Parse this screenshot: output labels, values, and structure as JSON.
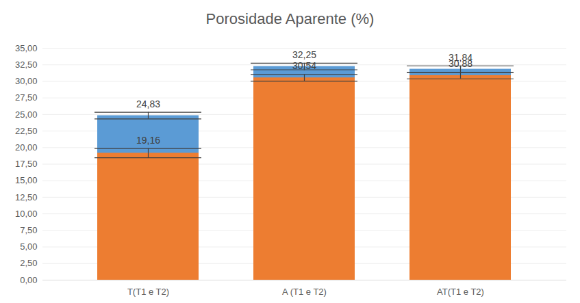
{
  "chart_data": {
    "type": "bar",
    "title": "Porosidade Aparente (%)",
    "categories": [
      "T(T1 e T2)",
      "A (T1 e T2)",
      "AT(T1 e T2)"
    ],
    "series": [
      {
        "color": "#5b9bd5",
        "values": [
          24.83,
          32.25,
          31.84
        ],
        "value_labels": [
          "24,83",
          "32,25",
          "31,84"
        ],
        "errors": [
          0.5,
          0.5,
          0.5
        ]
      },
      {
        "color": "#ed7d31",
        "values": [
          19.16,
          30.54,
          30.88
        ],
        "value_labels": [
          "19,16",
          "30,54",
          "30,88"
        ],
        "errors": [
          0.7,
          0.5,
          0.5
        ]
      }
    ],
    "ylim": [
      0,
      35
    ],
    "yticks": [
      {
        "value": 0,
        "label": "0,00"
      },
      {
        "value": 2.5,
        "label": "2,50"
      },
      {
        "value": 5,
        "label": "5,00"
      },
      {
        "value": 7.5,
        "label": "7,50"
      },
      {
        "value": 10,
        "label": "10,00"
      },
      {
        "value": 12.5,
        "label": "12,50"
      },
      {
        "value": 15,
        "label": "15,00"
      },
      {
        "value": 17.5,
        "label": "17,50"
      },
      {
        "value": 20,
        "label": "20,00"
      },
      {
        "value": 22.5,
        "label": "22,50"
      },
      {
        "value": 25,
        "label": "25,00"
      },
      {
        "value": 27.5,
        "label": "27,50"
      },
      {
        "value": 30,
        "label": "30,00"
      },
      {
        "value": 32.5,
        "label": "32,50"
      },
      {
        "value": 35,
        "label": "35,00"
      }
    ],
    "grid": true,
    "data_labels": true
  }
}
